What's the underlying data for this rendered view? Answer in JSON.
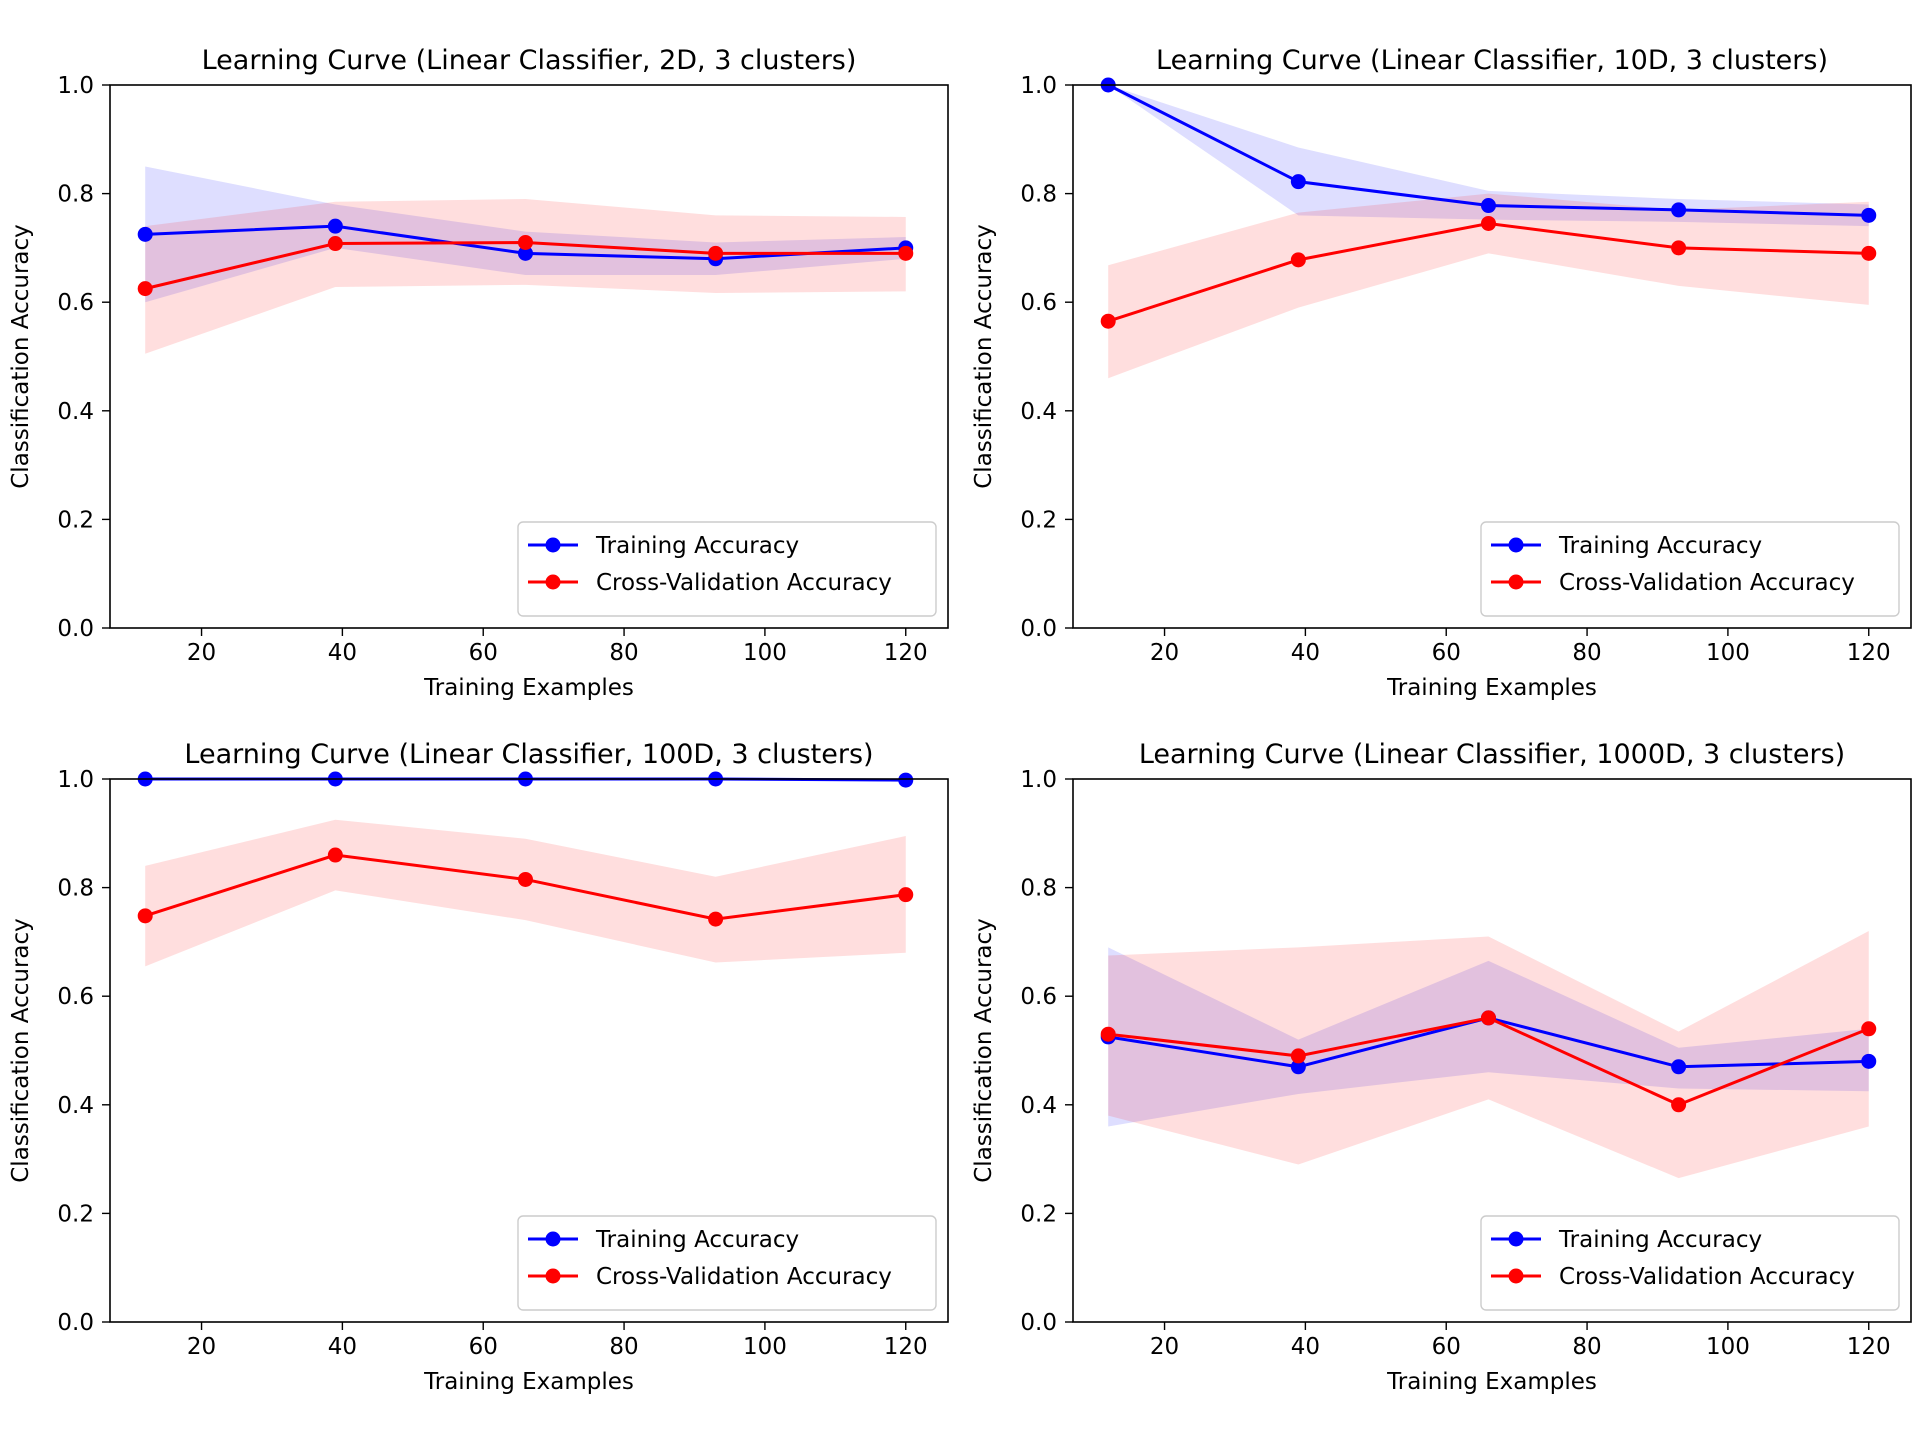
{
  "colors": {
    "training": "#0000ff",
    "cv": "#ff0000",
    "training_band": "#0000ff",
    "cv_band": "#ff0000"
  },
  "chart_data": [
    {
      "type": "line",
      "title": "Learning Curve (Linear Classifier, 2D, 3 clusters)",
      "xlabel": "Training Examples",
      "ylabel": "Classification Accuracy",
      "xlim": [
        7,
        126
      ],
      "ylim": [
        0.0,
        1.0
      ],
      "xticks": [
        20,
        40,
        60,
        80,
        100,
        120
      ],
      "yticks": [
        0.0,
        0.2,
        0.4,
        0.6,
        0.8,
        1.0
      ],
      "legend_position": "lower-right",
      "x": [
        12,
        39,
        66,
        93,
        120
      ],
      "series": [
        {
          "name": "Training Accuracy",
          "color": "#0000ff",
          "values": [
            0.725,
            0.74,
            0.69,
            0.68,
            0.7
          ],
          "band_low": [
            0.6,
            0.7,
            0.65,
            0.65,
            0.68
          ],
          "band_high": [
            0.85,
            0.78,
            0.73,
            0.71,
            0.72
          ]
        },
        {
          "name": "Cross-Validation Accuracy",
          "color": "#ff0000",
          "values": [
            0.625,
            0.708,
            0.71,
            0.69,
            0.69
          ],
          "band_low": [
            0.505,
            0.628,
            0.632,
            0.617,
            0.62
          ],
          "band_high": [
            0.74,
            0.785,
            0.79,
            0.76,
            0.757
          ]
        }
      ]
    },
    {
      "type": "line",
      "title": "Learning Curve (Linear Classifier, 10D, 3 clusters)",
      "xlabel": "Training Examples",
      "ylabel": "Classification Accuracy",
      "xlim": [
        7,
        126
      ],
      "ylim": [
        0.0,
        1.0
      ],
      "xticks": [
        20,
        40,
        60,
        80,
        100,
        120
      ],
      "yticks": [
        0.0,
        0.2,
        0.4,
        0.6,
        0.8,
        1.0
      ],
      "legend_position": "lower-right",
      "x": [
        12,
        39,
        66,
        93,
        120
      ],
      "series": [
        {
          "name": "Training Accuracy",
          "color": "#0000ff",
          "values": [
            1.0,
            0.822,
            0.778,
            0.77,
            0.76
          ],
          "band_low": [
            1.0,
            0.76,
            0.752,
            0.748,
            0.74
          ],
          "band_high": [
            1.0,
            0.885,
            0.805,
            0.79,
            0.78
          ]
        },
        {
          "name": "Cross-Validation Accuracy",
          "color": "#ff0000",
          "values": [
            0.565,
            0.678,
            0.745,
            0.7,
            0.69
          ],
          "band_low": [
            0.46,
            0.59,
            0.69,
            0.63,
            0.595
          ],
          "band_high": [
            0.668,
            0.765,
            0.8,
            0.77,
            0.785
          ]
        }
      ]
    },
    {
      "type": "line",
      "title": "Learning Curve (Linear Classifier, 100D, 3 clusters)",
      "xlabel": "Training Examples",
      "ylabel": "Classification Accuracy",
      "xlim": [
        7,
        126
      ],
      "ylim": [
        0.0,
        1.0
      ],
      "xticks": [
        20,
        40,
        60,
        80,
        100,
        120
      ],
      "yticks": [
        0.0,
        0.2,
        0.4,
        0.6,
        0.8,
        1.0
      ],
      "legend_position": "lower-right",
      "x": [
        12,
        39,
        66,
        93,
        120
      ],
      "series": [
        {
          "name": "Training Accuracy",
          "color": "#0000ff",
          "values": [
            1.0,
            1.0,
            1.0,
            1.0,
            0.998
          ],
          "band_low": [
            1.0,
            1.0,
            1.0,
            1.0,
            0.995
          ],
          "band_high": [
            1.0,
            1.0,
            1.0,
            1.0,
            1.0
          ]
        },
        {
          "name": "Cross-Validation Accuracy",
          "color": "#ff0000",
          "values": [
            0.748,
            0.86,
            0.815,
            0.742,
            0.787
          ],
          "band_low": [
            0.655,
            0.795,
            0.74,
            0.662,
            0.68
          ],
          "band_high": [
            0.84,
            0.925,
            0.89,
            0.82,
            0.895
          ]
        }
      ]
    },
    {
      "type": "line",
      "title": "Learning Curve (Linear Classifier, 1000D, 3 clusters)",
      "xlabel": "Training Examples",
      "ylabel": "Classification Accuracy",
      "xlim": [
        7,
        126
      ],
      "ylim": [
        0.0,
        1.0
      ],
      "xticks": [
        20,
        40,
        60,
        80,
        100,
        120
      ],
      "yticks": [
        0.0,
        0.2,
        0.4,
        0.6,
        0.8,
        1.0
      ],
      "legend_position": "lower-right",
      "x": [
        12,
        39,
        66,
        93,
        120
      ],
      "series": [
        {
          "name": "Training Accuracy",
          "color": "#0000ff",
          "values": [
            0.525,
            0.47,
            0.56,
            0.47,
            0.48
          ],
          "band_low": [
            0.36,
            0.42,
            0.46,
            0.43,
            0.425
          ],
          "band_high": [
            0.69,
            0.52,
            0.665,
            0.505,
            0.54
          ]
        },
        {
          "name": "Cross-Validation Accuracy",
          "color": "#ff0000",
          "values": [
            0.53,
            0.49,
            0.56,
            0.4,
            0.54
          ],
          "band_low": [
            0.38,
            0.29,
            0.41,
            0.265,
            0.36
          ],
          "band_high": [
            0.675,
            0.69,
            0.71,
            0.535,
            0.72
          ]
        }
      ]
    }
  ]
}
